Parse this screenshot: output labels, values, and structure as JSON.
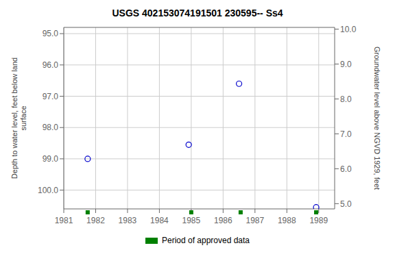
{
  "chart_data": {
    "type": "scatter",
    "title": "USGS 402153074191501 230595-- Ss4",
    "y_label": "Depth to water level, feet below land\nsurface",
    "y2_label": "Groundwater level above NGVD 1929, feet",
    "series": [
      {
        "color": "#0000cc",
        "marker": "circle",
        "x": [
          1981.75,
          1984.92,
          1986.5,
          1988.92
        ],
        "values": [
          99.0,
          98.55,
          96.6,
          100.55
        ]
      },
      {
        "name": "Period of approved data",
        "color": "#008000",
        "marker": "square",
        "x": [
          1981.75,
          1985.0,
          1986.55,
          1988.92
        ]
      }
    ],
    "xlim": [
      1981,
      1989.5
    ],
    "xticks": [
      1981,
      1982,
      1983,
      1984,
      1985,
      1986,
      1987,
      1988,
      1989
    ],
    "ylim": [
      100.6,
      94.8
    ],
    "yticks": [
      {
        "value": 95.0,
        "label": "95.0"
      },
      {
        "value": 96.0,
        "label": "96.0"
      },
      {
        "value": 97.0,
        "label": "97.0"
      },
      {
        "value": 98.0,
        "label": "98.0"
      },
      {
        "value": 99.0,
        "label": "99.0"
      },
      {
        "value": 100.0,
        "label": "100.0"
      }
    ],
    "y2lim": [
      4.85,
      10.05
    ],
    "y2ticks": [
      {
        "value": 5.0,
        "label": "5.0"
      },
      {
        "value": 6.0,
        "label": "6.0"
      },
      {
        "value": 7.0,
        "label": "7.0"
      },
      {
        "value": 8.0,
        "label": "8.0"
      },
      {
        "value": 9.0,
        "label": "9.0"
      },
      {
        "value": 10.0,
        "label": "10.0"
      }
    ],
    "grid": true,
    "legend": "bottom"
  }
}
